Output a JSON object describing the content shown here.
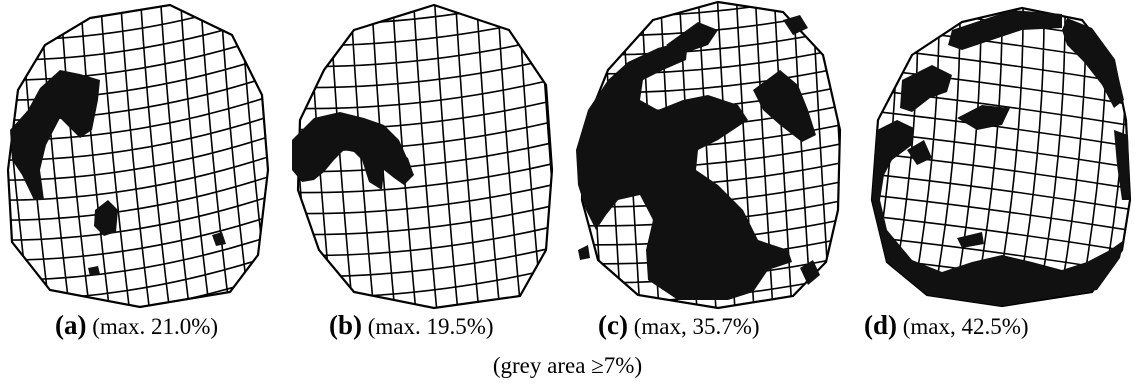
{
  "panels": [
    {
      "label": "(a)",
      "value": "(max. 21.0%)"
    },
    {
      "label": "(b)",
      "value": "(max. 19.5%)"
    },
    {
      "label": "(c)",
      "value": "(max, 35.7%)"
    },
    {
      "label": "(d)",
      "value": "(max, 42.5%)"
    }
  ],
  "footer": "(grey area ≥7%)",
  "colors": {
    "mesh": "#000000",
    "fill": "#111111",
    "background": "#ffffff"
  }
}
